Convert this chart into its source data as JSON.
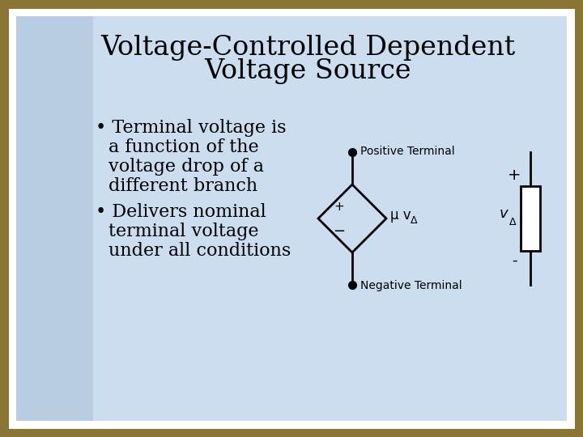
{
  "title_line1": "Voltage-Controlled Dependent",
  "title_line2": "Voltage Source",
  "bullet1_lines": [
    "Terminal voltage is",
    "a function of the",
    "voltage drop of a",
    "different branch"
  ],
  "bullet2_lines": [
    "Delivers nominal",
    "terminal voltage",
    "under all conditions"
  ],
  "positive_terminal_label": "Positive Terminal",
  "negative_terminal_label": "Negative Terminal",
  "diamond_label_mu": "μ v",
  "diamond_label_sub": "Δ",
  "plus_label_diamond": "+",
  "minus_label_diamond": "−",
  "battery_plus": "+",
  "battery_minus": "-",
  "battery_label_v": "v",
  "battery_label_sub": "Δ",
  "bg_outer": "#8B7536",
  "bg_slide": "#ccddf0",
  "bg_column": "#a8c0d8",
  "text_color": "#000000",
  "title_color": "#000000",
  "border_color": "#ffffff",
  "diagram_color": "#000000",
  "title_fontsize": 24,
  "bullet_fontsize": 16,
  "diagram_fontsize": 10
}
